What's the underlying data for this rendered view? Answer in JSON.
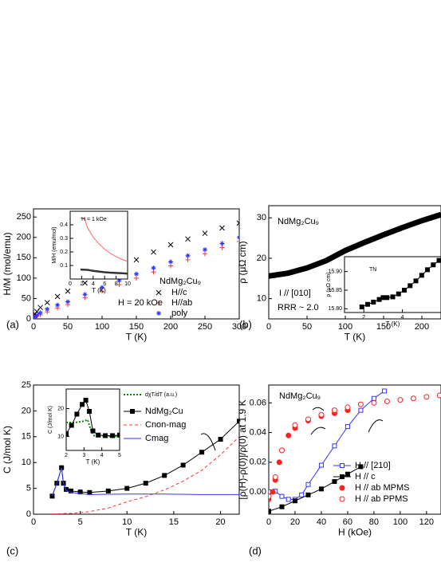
{
  "chart_data": [
    {
      "type": "scatter",
      "panel": "(a)",
      "xlabel": "T (K)",
      "ylabel": "H/M (mol/emu)",
      "xlim": [
        0,
        300
      ],
      "ylim": [
        0,
        270
      ],
      "xticks": [
        0,
        50,
        100,
        150,
        200,
        250,
        300
      ],
      "yticks": [
        0,
        50,
        100,
        150,
        200,
        250
      ],
      "annotations": [
        "NdMg₂Cu₉",
        "H = 20 kOe"
      ],
      "series": [
        {
          "name": "H//c",
          "color": "#000000",
          "marker": "x",
          "x": [
            2,
            5,
            10,
            20,
            35,
            50,
            75,
            100,
            125,
            150,
            175,
            200,
            225,
            250,
            275,
            300
          ],
          "values": [
            12,
            18,
            28,
            40,
            55,
            68,
            88,
            108,
            127,
            145,
            164,
            182,
            196,
            210,
            223,
            235
          ]
        },
        {
          "name": "H//ab",
          "color": "#ff3333",
          "marker": "+",
          "x": [
            2,
            5,
            10,
            20,
            35,
            50,
            75,
            100,
            125,
            150,
            175,
            200,
            225,
            250,
            275,
            300
          ],
          "values": [
            3,
            6,
            10,
            17,
            27,
            35,
            52,
            68,
            84,
            100,
            115,
            130,
            145,
            160,
            175,
            190
          ]
        },
        {
          "name": "poly",
          "color": "#3333ff",
          "marker": "*",
          "x": [
            2,
            5,
            10,
            20,
            35,
            50,
            75,
            100,
            125,
            150,
            175,
            200,
            225,
            250,
            275,
            300
          ],
          "values": [
            5,
            9,
            15,
            24,
            34,
            42,
            60,
            77,
            94,
            110,
            125,
            140,
            155,
            170,
            185,
            200
          ]
        }
      ]
    },
    {
      "type": "line",
      "xlabel": "T (K)",
      "ylabel": "M/H (emu/mol)",
      "xlim": [
        0,
        10
      ],
      "ylim": [
        0,
        0.5
      ],
      "xticks": [
        0,
        2,
        4,
        6,
        8,
        10
      ],
      "yticks": [
        0.1,
        0.2,
        0.3,
        0.4
      ],
      "annotations": [
        "H = 1 kOe"
      ],
      "series": [
        {
          "color": "#ff6666",
          "style": "solid",
          "x": [
            1.8,
            2.5,
            3,
            4,
            5,
            6,
            7,
            8,
            9,
            10
          ],
          "values": [
            0.45,
            0.45,
            0.38,
            0.31,
            0.26,
            0.22,
            0.19,
            0.165,
            0.145,
            0.13
          ]
        },
        {
          "color": "#333333",
          "style": "thick",
          "x": [
            1.8,
            3,
            4,
            5,
            6,
            7,
            8,
            9,
            10
          ],
          "values": [
            0.07,
            0.068,
            0.06,
            0.055,
            0.05,
            0.047,
            0.045,
            0.043,
            0.04
          ]
        }
      ]
    },
    {
      "type": "line",
      "panel": "(b)",
      "xlabel": "T (K)",
      "ylabel": "ρ (μΩ cm)",
      "xlim": [
        0,
        225
      ],
      "ylim": [
        5,
        33
      ],
      "xticks": [
        0,
        50,
        100,
        150,
        200
      ],
      "yticks": [
        10,
        20,
        30
      ],
      "annotations": [
        "NdMg₂Cu₉",
        "I // [010]",
        "RRR ~ 2.0"
      ],
      "series": [
        {
          "color": "#000000",
          "style": "heavy",
          "x": [
            0,
            25,
            50,
            75,
            100,
            125,
            150,
            175,
            200,
            225
          ],
          "values": [
            15.6,
            16.3,
            17.6,
            19.4,
            21.9,
            23.9,
            25.8,
            27.6,
            29.3,
            30.8
          ]
        }
      ]
    },
    {
      "type": "line",
      "xlabel": "T (K)",
      "ylabel": "ρ (μΩ cm)",
      "xlim": [
        1,
        6
      ],
      "ylim": [
        15.79,
        15.94
      ],
      "xticks": [
        2,
        4
      ],
      "yticks": [
        {
          "value": 15.8,
          "label": "15.80"
        },
        {
          "value": 15.85,
          "label": "15.85"
        },
        {
          "value": 15.9,
          "label": "15.90"
        }
      ],
      "annotations": [
        "TN"
      ],
      "series": [
        {
          "color": "#000000",
          "marker": "square",
          "style": "solid",
          "x": [
            1.9,
            2.2,
            2.5,
            2.8,
            3.0,
            3.2,
            3.5,
            3.8,
            4.1,
            4.4,
            4.7,
            5.0,
            5.3,
            5.6,
            5.9
          ],
          "values": [
            15.805,
            15.812,
            15.818,
            15.825,
            15.83,
            15.83,
            15.832,
            15.84,
            15.85,
            15.862,
            15.875,
            15.89,
            15.905,
            15.918,
            15.93
          ]
        }
      ]
    },
    {
      "type": "line",
      "panel": "(c)",
      "xlabel": "T (K)",
      "ylabel": "C (J/mol K)",
      "xlim": [
        0,
        22
      ],
      "ylim": [
        0,
        25
      ],
      "xticks": [
        0,
        5,
        10,
        15,
        20
      ],
      "yticks": [
        0,
        5,
        10,
        15,
        20,
        25
      ],
      "series": [
        {
          "name": "NdMg₂Cu",
          "color": "#000000",
          "marker": "square",
          "style": "solid",
          "x": [
            2,
            2.5,
            3,
            3.2,
            3.5,
            4,
            5,
            6,
            8,
            10,
            12,
            14,
            16,
            18,
            20,
            22
          ],
          "values": [
            3.5,
            6,
            9,
            6,
            4.8,
            4.5,
            4.3,
            4.2,
            4.5,
            5,
            6,
            7.5,
            9.5,
            12,
            14.5,
            18
          ]
        },
        {
          "name": "Cnon-mag",
          "color": "#ff3333",
          "style": "dashed",
          "x": [
            2,
            4,
            6,
            8,
            10,
            12,
            14,
            16,
            18,
            20,
            22
          ],
          "values": [
            0.05,
            0.15,
            0.5,
            1.2,
            2.4,
            3.4,
            4.7,
            6.4,
            8.5,
            11.5,
            15
          ]
        },
        {
          "name": "Cmag",
          "color": "#3333ff",
          "style": "solid",
          "x": [
            2,
            2.5,
            3,
            3.2,
            3.5,
            4,
            6,
            10,
            14,
            18,
            22
          ],
          "values": [
            3.5,
            6,
            9,
            6,
            4.6,
            4.2,
            3.8,
            3.9,
            3.9,
            3.8,
            3.8
          ]
        }
      ]
    },
    {
      "type": "line",
      "xlabel": "T (K)",
      "ylabel": "C (J/mol K)",
      "xlim": [
        2,
        5
      ],
      "ylim": [
        5,
        27
      ],
      "xticks": [
        2,
        3,
        4,
        5
      ],
      "yticks": [
        10,
        20
      ],
      "series": [
        {
          "name": "dχT/dT (a.u.)",
          "color": "#008800",
          "style": "dotted",
          "x": [
            2,
            2.5,
            3,
            3.2,
            3.4,
            3.6,
            4,
            4.5,
            5
          ],
          "values": [
            15,
            15,
            15.5,
            16,
            12,
            10,
            10,
            10,
            10
          ]
        },
        {
          "color": "#000000",
          "marker": "square",
          "style": "solid",
          "x": [
            2,
            2.3,
            2.6,
            2.9,
            3.1,
            3.3,
            3.5,
            3.8,
            4.2,
            4.6,
            5
          ],
          "values": [
            11,
            14,
            18,
            21.5,
            23,
            19,
            12,
            10.5,
            10.3,
            10.3,
            10.5
          ]
        }
      ]
    },
    {
      "type": "scatter",
      "panel": "(d)",
      "xlabel": "H (kOe)",
      "ylabel": "[ρ(H)-ρ(0)]/ρ(0) at 1.9 K",
      "xlim": [
        0,
        131
      ],
      "ylim": [
        -0.015,
        0.072
      ],
      "xticks": [
        0,
        20,
        40,
        60,
        80,
        100,
        120
      ],
      "yticks": [
        {
          "value": 0,
          "label": "0.00"
        },
        {
          "value": 0.02,
          "label": "0.02"
        },
        {
          "value": 0.04,
          "label": "0.04"
        },
        {
          "value": 0.06,
          "label": "0.06"
        }
      ],
      "annotations": [
        "NdMg₂Cu₉"
      ],
      "series": [
        {
          "name": "H // [210]",
          "color": "#3333ff",
          "marker": "open-square",
          "style": "solid",
          "x": [
            0,
            5,
            10,
            15,
            20,
            25,
            30,
            40,
            50,
            60,
            70,
            80,
            88
          ],
          "values": [
            0,
            0.0005,
            -0.003,
            -0.005,
            -0.005,
            -0.002,
            0.005,
            0.018,
            0.031,
            0.044,
            0.055,
            0.063,
            0.068
          ]
        },
        {
          "name": "H // c",
          "color": "#000000",
          "marker": "square",
          "style": "solid",
          "x": [
            0,
            10,
            20,
            30,
            40,
            50,
            60,
            70
          ],
          "values": [
            -0.013,
            -0.01,
            -0.006,
            -0.002,
            0.002,
            0.007,
            0.012,
            0.017
          ]
        },
        {
          "name": "H // ab MPMS",
          "color": "#ff2222",
          "marker": "circle",
          "x": [
            0,
            3,
            5,
            8,
            10,
            15,
            20,
            30,
            40,
            50,
            60
          ],
          "values": [
            -0.005,
            0,
            0.008,
            0.02,
            0.028,
            0.038,
            0.043,
            0.048,
            0.051,
            0.053,
            0.055
          ]
        },
        {
          "name": "H // ab PPMS",
          "color": "#ff2222",
          "marker": "open-circle",
          "x": [
            0,
            5,
            10,
            20,
            30,
            40,
            50,
            60,
            70,
            80,
            90,
            100,
            110,
            120,
            130
          ],
          "values": [
            -0.003,
            0.01,
            0.028,
            0.045,
            0.049,
            0.052,
            0.055,
            0.057,
            0.059,
            0.06,
            0.061,
            0.062,
            0.063,
            0.064,
            0.065
          ]
        }
      ]
    }
  ]
}
